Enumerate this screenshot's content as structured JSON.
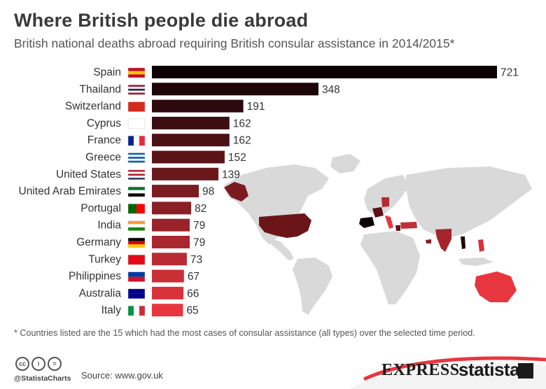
{
  "title": "Where British people die abroad",
  "subtitle": "British national deaths abroad requiring British consular assistance in 2014/2015*",
  "footnote": "* Countries listed are the 15 which had the most cases of consular assistance (all types) over the selected time period.",
  "handle": "@StatistaCharts",
  "source": "Source: www.gov.uk",
  "logos": {
    "express": "EXPRESS",
    "statista": "statista"
  },
  "icons": [
    "cc-icon",
    "attribution-icon",
    "no-derivatives-icon",
    "flag-icons",
    "world-map"
  ],
  "colors": {
    "darkest": "#0d0204",
    "lightest": "#e8363f",
    "map_land": "#d9d9d9",
    "map_highlight": "#8b1e22"
  },
  "chart_data": {
    "type": "bar",
    "orientation": "horizontal",
    "title": "Where British people die abroad",
    "subtitle": "British national deaths abroad requiring British consular assistance in 2014/2015*",
    "categories": [
      "Spain",
      "Thailand",
      "Switzerland",
      "Cyprus",
      "France",
      "Greece",
      "United States",
      "United Arab Emirates",
      "Portugal",
      "India",
      "Germany",
      "Turkey",
      "Philippines",
      "Australia",
      "Italy"
    ],
    "values": [
      721,
      348,
      191,
      162,
      162,
      152,
      139,
      98,
      82,
      79,
      79,
      73,
      67,
      66,
      65
    ],
    "xlim": [
      0,
      721
    ],
    "grid": false,
    "legend": "none"
  }
}
